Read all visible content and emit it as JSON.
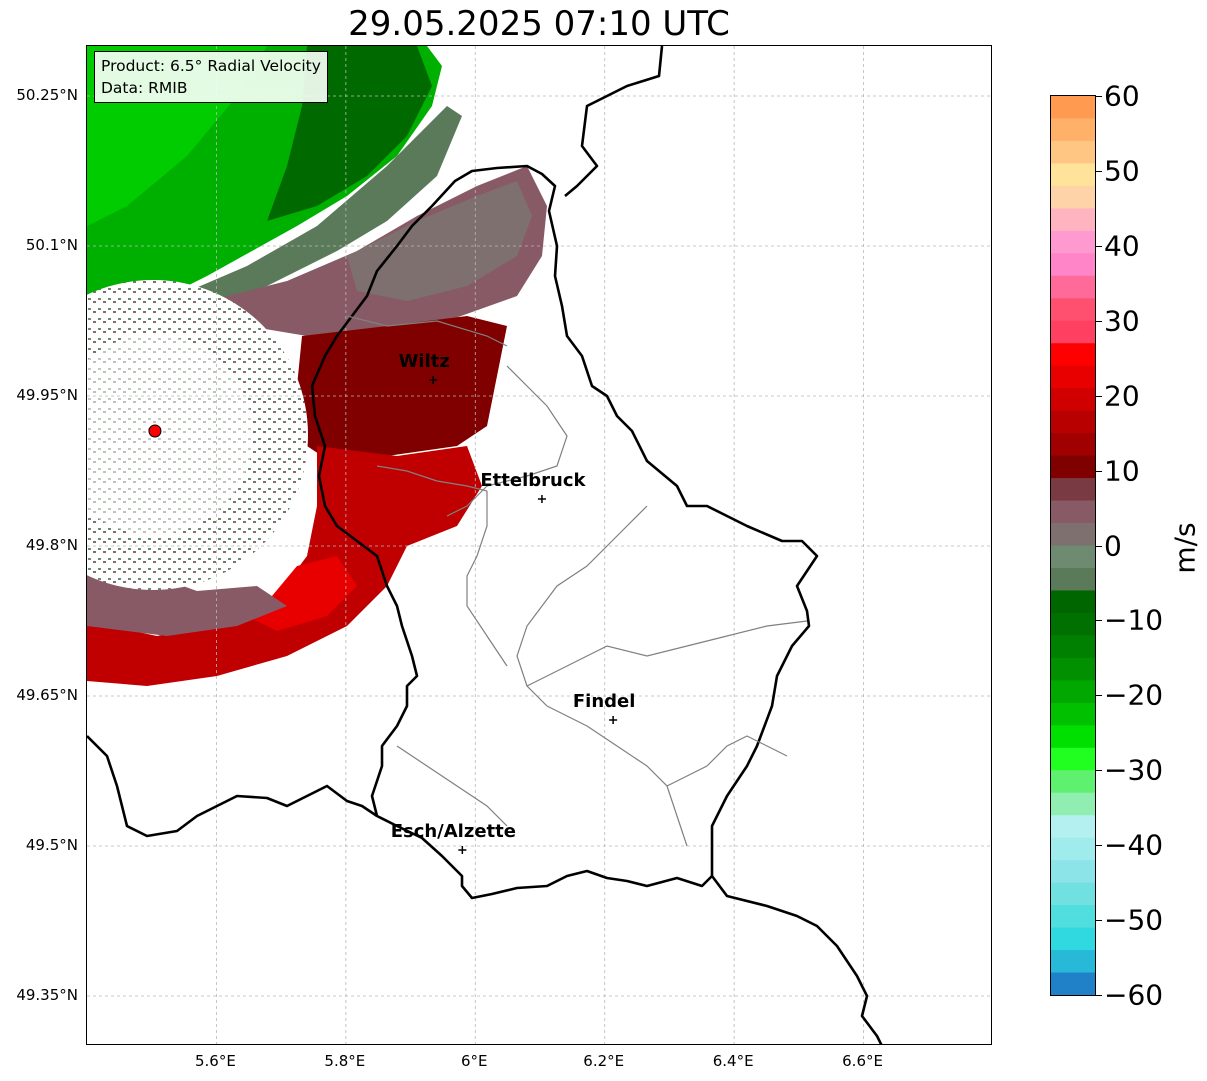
{
  "title": "29.05.2025 07:10 UTC",
  "info_box": {
    "product": "Product: 6.5° Radial Velocity",
    "data_source": "Data: RMIB"
  },
  "axes": {
    "lat_labels": [
      "50.25°N",
      "50.1°N",
      "49.95°N",
      "49.8°N",
      "49.65°N",
      "49.5°N",
      "49.35°N"
    ],
    "lat_values": [
      50.25,
      50.1,
      49.95,
      49.8,
      49.65,
      49.5,
      49.35
    ],
    "lon_labels": [
      "5.6°E",
      "5.8°E",
      "6°E",
      "6.2°E",
      "6.4°E",
      "6.6°E"
    ],
    "lon_values": [
      5.6,
      5.8,
      6.0,
      6.2,
      6.4,
      6.6
    ],
    "lon_range": [
      5.4,
      6.8
    ],
    "lat_range": [
      49.3,
      50.3
    ],
    "gridlines": true
  },
  "colorbar": {
    "label": "m/s",
    "range": [
      -60,
      60
    ],
    "tick_labels": [
      "60",
      "50",
      "40",
      "30",
      "20",
      "10",
      "0",
      "−10",
      "−20",
      "−30",
      "−40",
      "−50",
      "−60"
    ],
    "tick_values": [
      60,
      50,
      40,
      30,
      20,
      10,
      0,
      -10,
      -20,
      -30,
      -40,
      -50,
      -60
    ],
    "stops": [
      {
        "from": 57,
        "to": 60,
        "color": "#ff9a50"
      },
      {
        "from": 54,
        "to": 57,
        "color": "#ffb16a"
      },
      {
        "from": 51,
        "to": 54,
        "color": "#ffc582"
      },
      {
        "from": 48,
        "to": 51,
        "color": "#ffe39a"
      },
      {
        "from": 45,
        "to": 48,
        "color": "#ffd3a8"
      },
      {
        "from": 42,
        "to": 45,
        "color": "#ffb4c0"
      },
      {
        "from": 39,
        "to": 42,
        "color": "#ff9ad0"
      },
      {
        "from": 36,
        "to": 39,
        "color": "#ff84c8"
      },
      {
        "from": 33,
        "to": 36,
        "color": "#ff6a9a"
      },
      {
        "from": 30,
        "to": 33,
        "color": "#ff5070"
      },
      {
        "from": 27,
        "to": 30,
        "color": "#ff4060"
      },
      {
        "from": 24,
        "to": 27,
        "color": "#ff0000"
      },
      {
        "from": 21,
        "to": 24,
        "color": "#e80000"
      },
      {
        "from": 18,
        "to": 21,
        "color": "#d00000"
      },
      {
        "from": 15,
        "to": 18,
        "color": "#b80000"
      },
      {
        "from": 12,
        "to": 15,
        "color": "#a00000"
      },
      {
        "from": 9,
        "to": 12,
        "color": "#800000"
      },
      {
        "from": 6,
        "to": 9,
        "color": "#7a3a44"
      },
      {
        "from": 3,
        "to": 6,
        "color": "#875a66"
      },
      {
        "from": 0,
        "to": 3,
        "color": "#7f7070"
      },
      {
        "from": -3,
        "to": 0,
        "color": "#6e8a70"
      },
      {
        "from": -6,
        "to": -3,
        "color": "#5a7a5a"
      },
      {
        "from": -9,
        "to": -6,
        "color": "#006600"
      },
      {
        "from": -12,
        "to": -9,
        "color": "#007000"
      },
      {
        "from": -15,
        "to": -12,
        "color": "#008000"
      },
      {
        "from": -18,
        "to": -15,
        "color": "#009000"
      },
      {
        "from": -21,
        "to": -18,
        "color": "#00a800"
      },
      {
        "from": -24,
        "to": -21,
        "color": "#00c000"
      },
      {
        "from": -27,
        "to": -24,
        "color": "#00e000"
      },
      {
        "from": -30,
        "to": -27,
        "color": "#20ff20"
      },
      {
        "from": -33,
        "to": -30,
        "color": "#60f070"
      },
      {
        "from": -36,
        "to": -33,
        "color": "#90eeb0"
      },
      {
        "from": -39,
        "to": -36,
        "color": "#b4f0f0"
      },
      {
        "from": -42,
        "to": -39,
        "color": "#a0ecec"
      },
      {
        "from": -45,
        "to": -42,
        "color": "#8ce4e8"
      },
      {
        "from": -48,
        "to": -45,
        "color": "#70e0e0"
      },
      {
        "from": -51,
        "to": -48,
        "color": "#50dede"
      },
      {
        "from": -54,
        "to": -51,
        "color": "#30d8e0"
      },
      {
        "from": -57,
        "to": -54,
        "color": "#28b8d8"
      },
      {
        "from": -60,
        "to": -57,
        "color": "#2080c8"
      }
    ]
  },
  "cities": [
    {
      "name": "Wiltz",
      "lon": 5.935,
      "lat": 49.966
    },
    {
      "name": "Ettelbruck",
      "lon": 6.103,
      "lat": 49.847
    },
    {
      "name": "Findel",
      "lon": 6.213,
      "lat": 49.626
    },
    {
      "name": "Esch/Alzette",
      "lon": 5.98,
      "lat": 49.496
    }
  ],
  "radar_site": {
    "lon": 5.505,
    "lat": 49.915,
    "color": "#ff0000"
  },
  "colors": {
    "strong_away": "#800000",
    "moderate_away": "#cc0000",
    "near_zero": "#7a6670",
    "moderate_toward": "#5a7a5a",
    "strong_toward": "#00b000"
  }
}
